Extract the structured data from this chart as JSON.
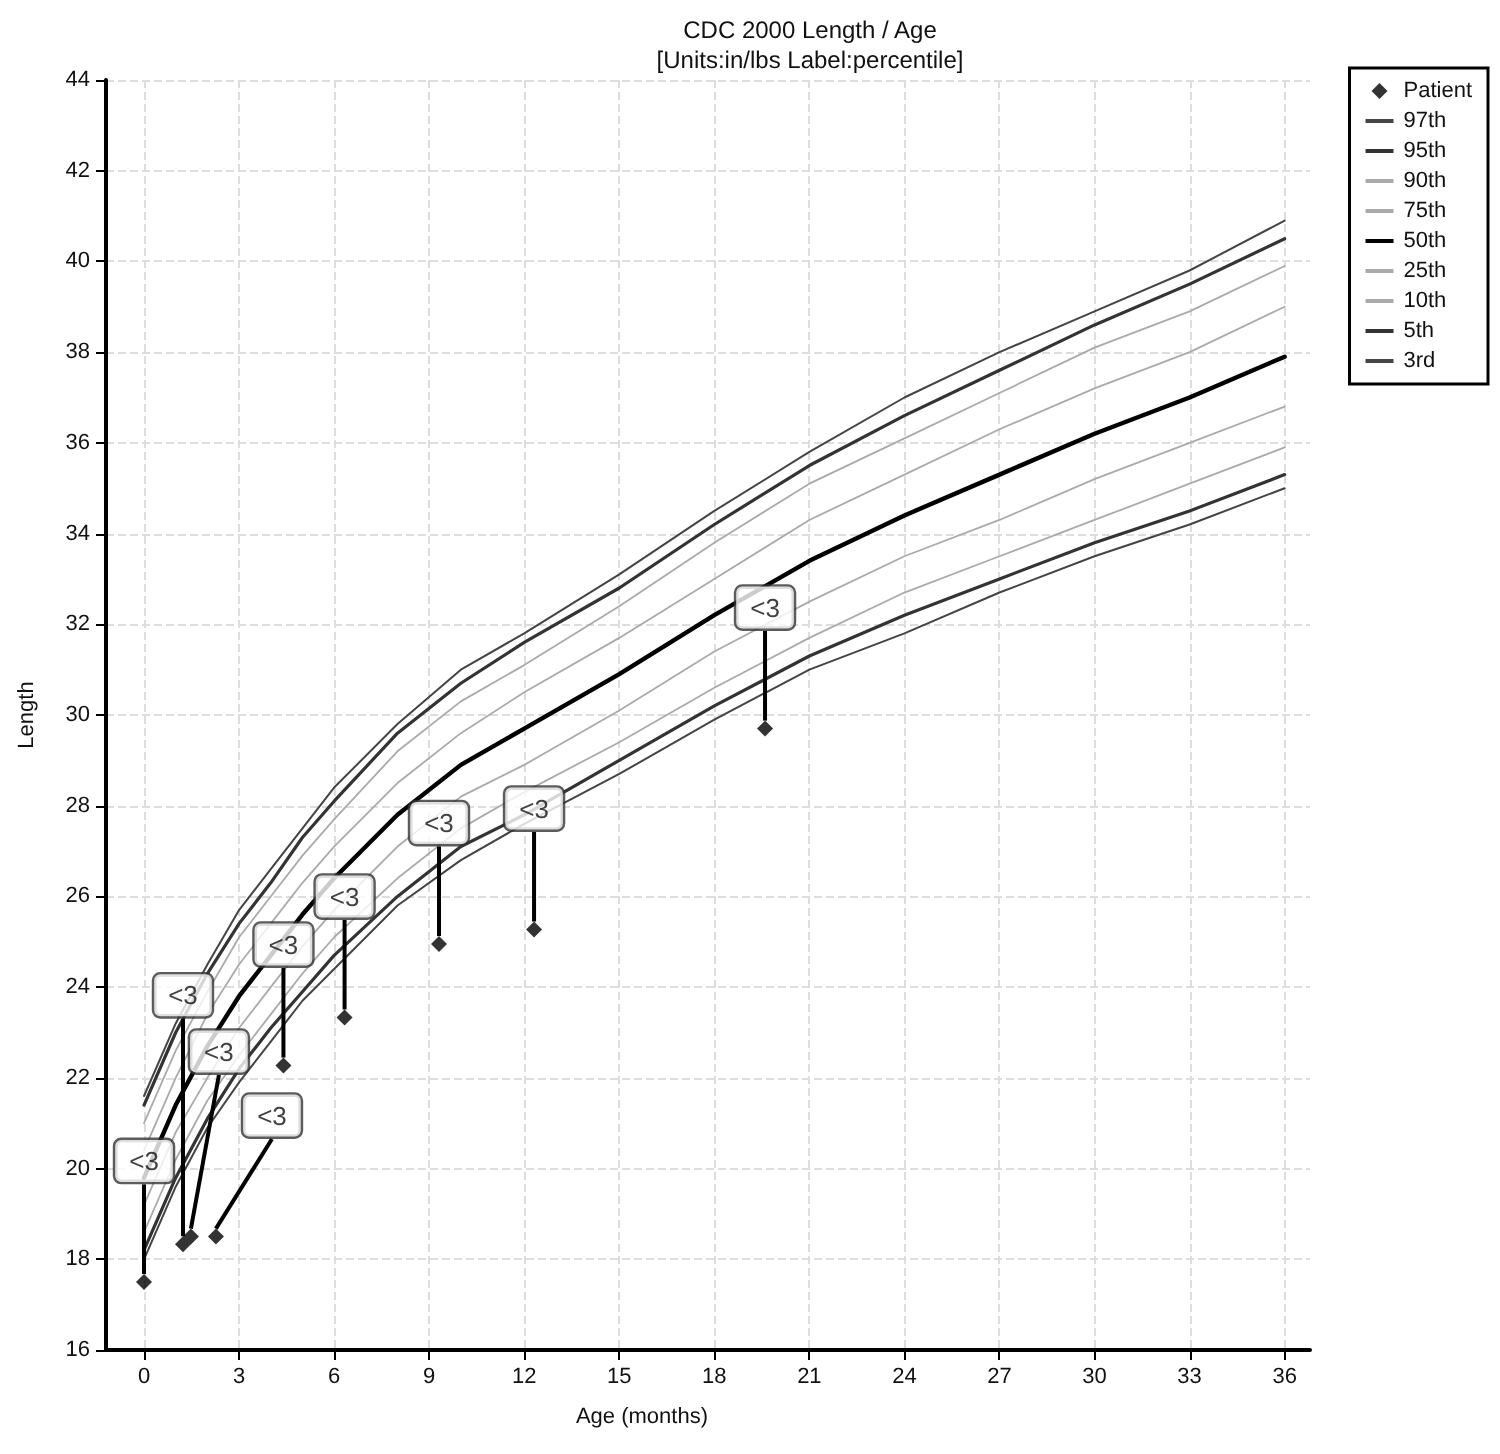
{
  "chart_data": {
    "type": "line",
    "title": "CDC 2000 Length / Age",
    "subtitle": "[Units:in/lbs Label:percentile]",
    "xlabel": "Age (months)",
    "ylabel": "Length",
    "x": [
      0,
      1,
      2,
      3,
      4,
      5,
      6,
      8,
      10,
      12,
      15,
      18,
      21,
      24,
      27,
      30,
      33,
      36
    ],
    "xlim": [
      -1.2,
      36.8
    ],
    "xticks": [
      0,
      3,
      6,
      9,
      12,
      15,
      18,
      21,
      24,
      27,
      30,
      33,
      36
    ],
    "ylim": [
      16,
      44
    ],
    "yticks": [
      16,
      18,
      20,
      22,
      24,
      26,
      28,
      30,
      32,
      34,
      36,
      38,
      40,
      42,
      44
    ],
    "grid": true,
    "legend": "top right",
    "marker": "none",
    "line_style": "solid",
    "series": [
      {
        "name": "Patient",
        "type": "scatter",
        "marker": "diamond",
        "color": "#000000",
        "x": [
          0,
          1.23,
          1.48,
          2.27,
          4.4,
          6.33,
          9.31,
          12.31,
          19.6
        ],
        "values": [
          17.5,
          18.33,
          18.5,
          18.5,
          22.27,
          23.33,
          24.95,
          25.27,
          29.7
        ],
        "value_labels": [
          "<3",
          "<3",
          "<3",
          "<3",
          "<3",
          "<3",
          "<3",
          "<3",
          "<3"
        ]
      },
      {
        "name": "97th",
        "color": "#444444",
        "values": [
          21.6,
          23.2,
          24.5,
          25.7,
          26.6,
          27.5,
          28.4,
          29.8,
          31.0,
          31.8,
          33.1,
          34.5,
          35.8,
          37.0,
          38.0,
          38.9,
          39.8,
          40.9
        ]
      },
      {
        "name": "95th",
        "color": "#333333",
        "values": [
          21.4,
          23.0,
          24.3,
          25.4,
          26.3,
          27.3,
          28.1,
          29.6,
          30.7,
          31.6,
          32.8,
          34.2,
          35.5,
          36.6,
          37.6,
          38.6,
          39.5,
          40.5
        ]
      },
      {
        "name": "90th",
        "color": "#aaaaaa",
        "values": [
          21.0,
          22.6,
          23.9,
          25.1,
          26.0,
          26.9,
          27.7,
          29.2,
          30.3,
          31.1,
          32.4,
          33.8,
          35.1,
          36.1,
          37.1,
          38.1,
          38.9,
          39.9
        ]
      },
      {
        "name": "75th",
        "color": "#aaaaaa",
        "values": [
          20.4,
          22.0,
          23.4,
          24.5,
          25.4,
          26.3,
          27.1,
          28.5,
          29.6,
          30.5,
          31.7,
          33.0,
          34.3,
          35.3,
          36.3,
          37.2,
          38.0,
          39.0
        ]
      },
      {
        "name": "50th",
        "color": "#000000",
        "values": [
          19.8,
          21.4,
          22.7,
          23.8,
          24.7,
          25.6,
          26.4,
          27.8,
          28.9,
          29.7,
          30.9,
          32.2,
          33.4,
          34.4,
          35.3,
          36.2,
          37.0,
          37.9
        ]
      },
      {
        "name": "25th",
        "color": "#aaaaaa",
        "values": [
          19.2,
          20.8,
          22.0,
          23.1,
          24.0,
          24.9,
          25.7,
          27.1,
          28.2,
          28.9,
          30.1,
          31.4,
          32.5,
          33.5,
          34.3,
          35.2,
          36.0,
          36.8
        ]
      },
      {
        "name": "10th",
        "color": "#aaaaaa",
        "values": [
          18.6,
          20.2,
          21.5,
          22.5,
          23.4,
          24.3,
          25.1,
          26.4,
          27.5,
          28.3,
          29.4,
          30.6,
          31.7,
          32.7,
          33.5,
          34.3,
          35.1,
          35.9
        ]
      },
      {
        "name": "5th",
        "color": "#333333",
        "values": [
          18.2,
          19.8,
          21.1,
          22.2,
          23.1,
          23.9,
          24.7,
          26.0,
          27.1,
          27.8,
          29.0,
          30.2,
          31.3,
          32.2,
          33.0,
          33.8,
          34.5,
          35.3
        ]
      },
      {
        "name": "3rd",
        "color": "#444444",
        "values": [
          18.0,
          19.6,
          20.9,
          21.9,
          22.8,
          23.7,
          24.4,
          25.8,
          26.8,
          27.6,
          28.7,
          29.9,
          31.0,
          31.8,
          32.7,
          33.5,
          34.2,
          35.0
        ]
      }
    ]
  }
}
